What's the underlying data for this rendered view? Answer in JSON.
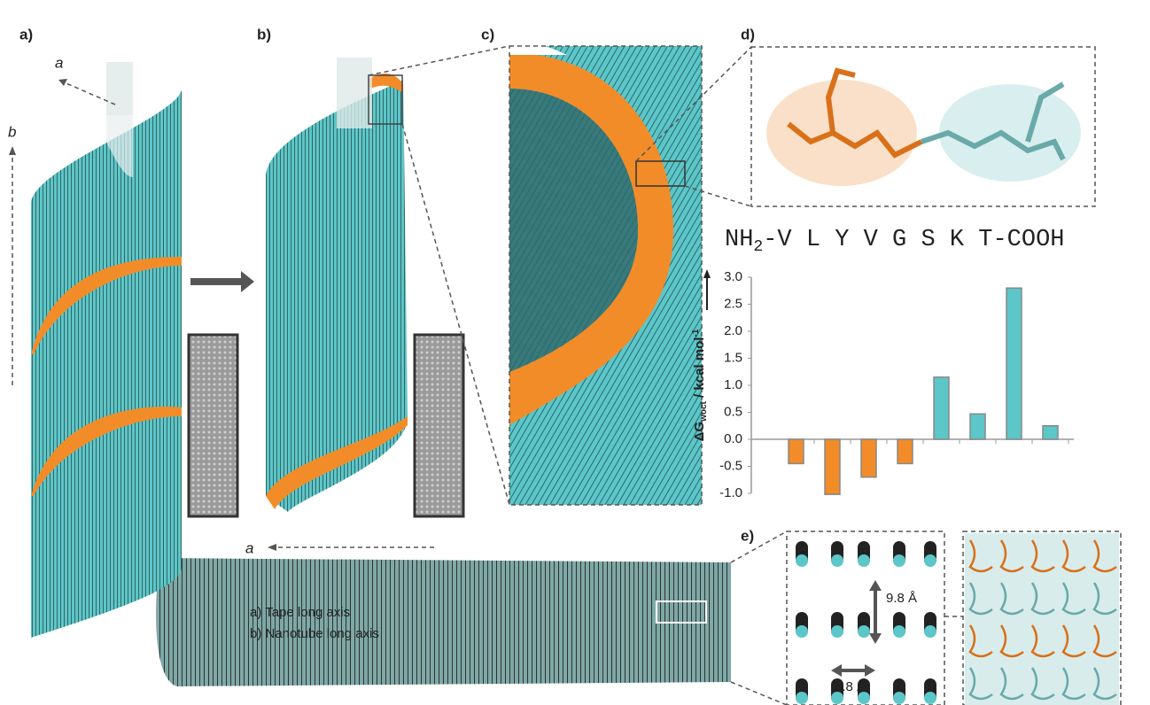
{
  "figure": {
    "panel_labels": [
      "a)",
      "b)",
      "c)",
      "d)",
      "e)"
    ],
    "axis_labels": {
      "a_top": "a",
      "b_side": "b",
      "a_tape": "a"
    },
    "tape_legend": [
      "a) Tape long axis",
      "b) Nanotube long axis"
    ],
    "sequence": {
      "prefix": "NH",
      "subscript": "2",
      "rest": "-V L Y V G S K T-COOH"
    },
    "spacings": [
      "9.8 Å",
      "4.8 Å"
    ]
  },
  "chart_data": {
    "type": "bar",
    "y_label": {
      "main": "ΔG",
      "subscript": "woct",
      "unit": " / kcal mol",
      "superscript": "-1"
    },
    "categories": [
      null,
      null,
      null,
      null,
      null,
      null,
      null,
      null
    ],
    "values": [
      -0.45,
      -1.02,
      -0.7,
      -0.45,
      1.15,
      0.47,
      2.8,
      0.25
    ],
    "colors": [
      "#f28c28",
      "#f28c28",
      "#f28c28",
      "#f28c28",
      "#5cc6c8",
      "#5cc6c8",
      "#5cc6c8",
      "#5cc6c8"
    ],
    "ylim": [
      -1.0,
      3.0
    ],
    "yticks": [
      {
        "value": -1.0,
        "label": "-1.0"
      },
      {
        "value": -0.5,
        "label": "-0.5"
      },
      {
        "value": 0,
        "label": "0.0"
      },
      {
        "value": 0.5,
        "label": "0.5"
      },
      {
        "value": 1.0,
        "label": "1.0"
      },
      {
        "value": 1.5,
        "label": "1.5"
      },
      {
        "value": 2.0,
        "label": "2.0"
      },
      {
        "value": 2.5,
        "label": "2.5"
      },
      {
        "value": 3.0,
        "label": "3.0"
      }
    ]
  }
}
